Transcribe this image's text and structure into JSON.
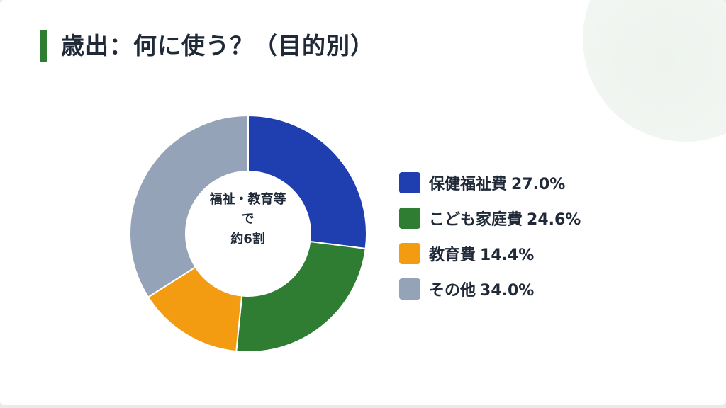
{
  "title": "歳出：何に使う？（目的別）",
  "center_label": {
    "line1": "福祉・教育等",
    "line2": "で",
    "line3": "約6割"
  },
  "chart_data": {
    "type": "pie",
    "title": "歳出：何に使う？（目的別）",
    "series": [
      {
        "name": "保健福祉費",
        "value": 27.0,
        "label": "27.0%",
        "color": "#1f3fb0"
      },
      {
        "name": "こども家庭費",
        "value": 24.6,
        "label": "24.6%",
        "color": "#2e7d32"
      },
      {
        "name": "教育費",
        "value": 14.4,
        "label": "14.4%",
        "color": "#f39c12"
      },
      {
        "name": "その他",
        "value": 34.0,
        "label": "34.0%",
        "color": "#94a3b8"
      }
    ],
    "donut": true,
    "legend": "right"
  },
  "colors": {
    "accent": "#2e7d32",
    "text": "#1f2937"
  }
}
